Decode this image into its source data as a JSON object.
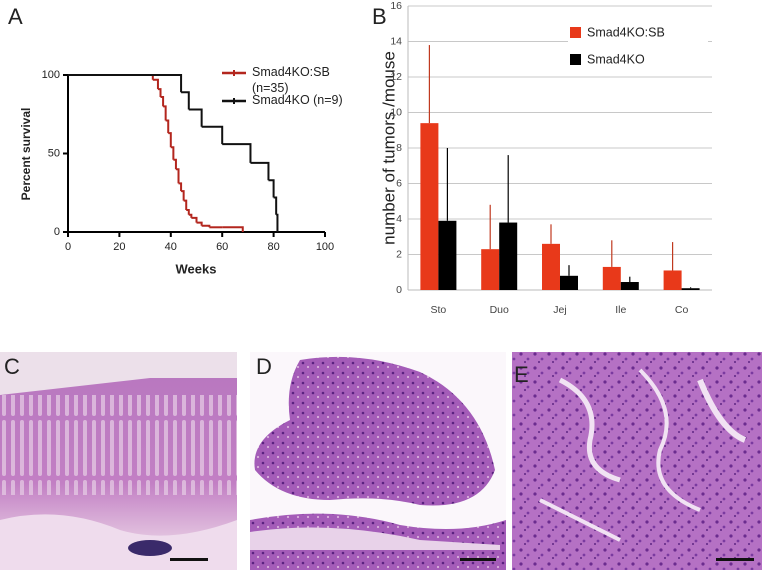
{
  "panel_labels": [
    "A",
    "B",
    "C",
    "D",
    "E"
  ],
  "chart_data": [
    {
      "type": "step",
      "xlabel": "Weeks",
      "ylabel": "Percent survival",
      "xlim": [
        0,
        100
      ],
      "ylim": [
        0,
        100
      ],
      "xticks": [
        0,
        20,
        40,
        60,
        80,
        100
      ],
      "yticks": [
        0,
        50,
        100
      ],
      "series": [
        {
          "name": "Smad4KO:SB (n=35)",
          "color": "#b3261e",
          "x": [
            0,
            33,
            35,
            36,
            37,
            38,
            39,
            40,
            41,
            42,
            43,
            44,
            45,
            46,
            47,
            48,
            50,
            52,
            55,
            60,
            68
          ],
          "values": [
            100,
            97,
            91,
            86,
            80,
            71,
            63,
            54,
            46,
            40,
            31,
            26,
            20,
            14,
            11,
            9,
            6,
            4,
            3,
            3,
            0
          ]
        },
        {
          "name": "Smad4KO (n=9)",
          "color": "#111111",
          "x": [
            0,
            44,
            47,
            52,
            60,
            71,
            78,
            80,
            81,
            81.5
          ],
          "values": [
            100,
            89,
            78,
            67,
            56,
            44,
            33,
            22,
            11,
            0
          ]
        }
      ]
    },
    {
      "type": "bar",
      "ylabel": "number of tumors /mouse",
      "categories": [
        "Sto",
        "Duo",
        "Jej",
        "Ile",
        "Co"
      ],
      "ylim": [
        0,
        16
      ],
      "yticks": [
        0,
        2,
        4,
        6,
        8,
        10,
        12,
        14,
        16
      ],
      "grid": true,
      "series": [
        {
          "name": "Smad4KO:SB",
          "color": "#e8391a",
          "values": [
            9.4,
            2.3,
            2.6,
            1.3,
            1.1
          ],
          "errors": [
            4.4,
            2.5,
            1.1,
            1.5,
            1.6
          ]
        },
        {
          "name": "Smad4KO",
          "color": "#000000",
          "values": [
            3.9,
            3.8,
            0.8,
            0.45,
            0.1
          ],
          "errors": [
            4.1,
            3.8,
            0.6,
            0.3,
            0.05
          ]
        }
      ]
    }
  ]
}
